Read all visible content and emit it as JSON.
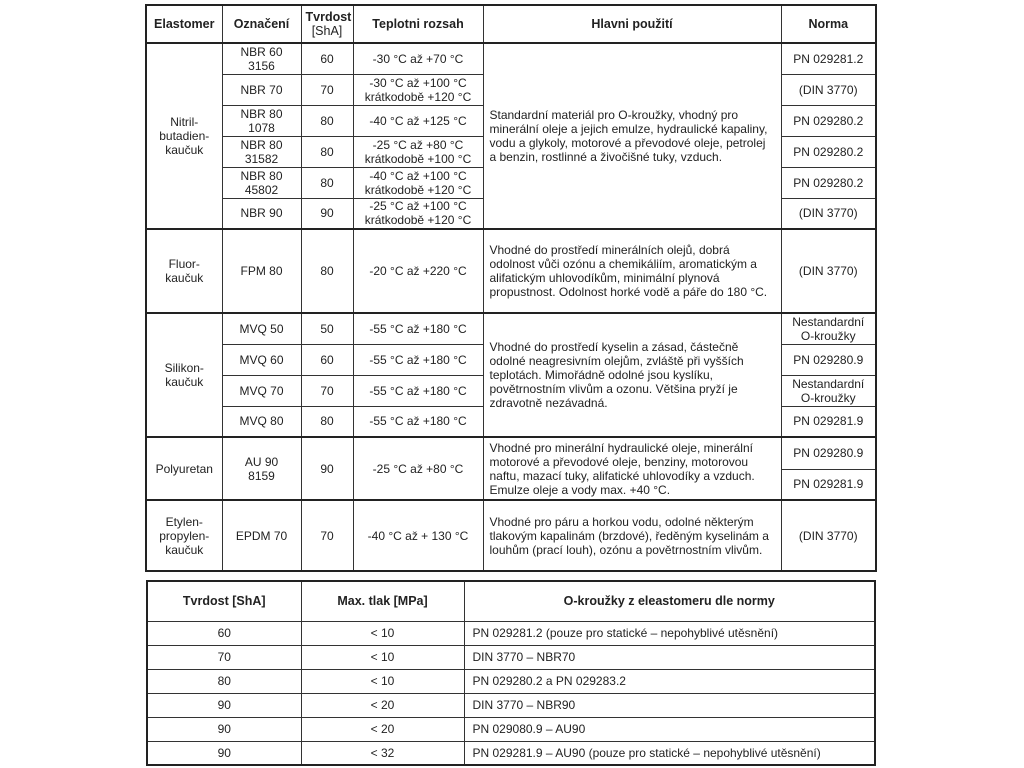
{
  "table1": {
    "headers": {
      "elastomer": "Elastomer",
      "oznaceni": "Označení",
      "tvrdost": "Tvrdost",
      "tvrdost_unit": "[ShA]",
      "teplota": "Teplotni rozsah",
      "pouziti": "Hlavni použití",
      "norma": "Norma"
    },
    "groups": [
      {
        "elastomer": "Nitril-\nbutadien-\nkaučuk",
        "pouziti": "Standardní materiál pro O-kroužky, vhodný pro minerální oleje a jejich emulze, hydraulické kapaliny, vodu a glykoly, motorové a převodové oleje, petrolej a benzin, rostlinné a živočišné tuky, vzduch.",
        "items": [
          {
            "oznaceni": "NBR 60\n3156",
            "tvrdost": "60",
            "teplota": "-30 °C až +70 °C",
            "norma": [
              "PN 029281.2"
            ]
          },
          {
            "oznaceni": "NBR 70",
            "tvrdost": "70",
            "teplota": "-30 °C až +100 °C\nkrátkodobě +120 °C",
            "norma": [
              "(DIN 3770)"
            ]
          },
          {
            "oznaceni": "NBR 80\n1078",
            "tvrdost": "80",
            "teplota": "-40 °C až +125 °C",
            "norma": [
              "PN 029280.2"
            ]
          },
          {
            "oznaceni": "NBR 80\n31582",
            "tvrdost": "80",
            "teplota": "-25 °C až +80 °C\nkrátkodobě +100 °C",
            "norma": [
              "PN 029280.2"
            ]
          },
          {
            "oznaceni": "NBR 80\n45802",
            "tvrdost": "80",
            "teplota": "-40 °C až +100 °C\nkrátkodobě +120 °C",
            "norma": [
              "PN 029280.2"
            ]
          },
          {
            "oznaceni": "NBR 90",
            "tvrdost": "90",
            "teplota": "-25 °C až +100 °C\nkrátkodobě +120 °C",
            "norma": [
              "(DIN 3770)"
            ]
          }
        ]
      },
      {
        "elastomer": "Fluor-\nkaučuk",
        "pouziti": "Vhodné do prostředí minerálních olejů, dobrá odolnost vůči ozónu a chemikáliím, aromatickým a alifatickým uhlovodíkům, minimální plynová propustnost. Odolnost horké vodě a páře do 180 °C.",
        "items": [
          {
            "oznaceni": "FPM 80",
            "tvrdost": "80",
            "teplota": "-20 °C až +220 °C",
            "norma": [
              "(DIN 3770)"
            ]
          }
        ]
      },
      {
        "elastomer": "Silikon-\nkaučuk",
        "pouziti": "Vhodné do prostředí kyselin a zásad, částečně odolné neagresivním olejům, zvláště při vyšších teplotách. Mimořádně odolné jsou kyslíku, povětrnostním vlivům a ozonu. Většina pryží je zdravotně nezávadná.",
        "items": [
          {
            "oznaceni": "MVQ 50",
            "tvrdost": "50",
            "teplota": "-55 °C až +180 °C",
            "norma": [
              "Nestandardní\nO-kroužky"
            ]
          },
          {
            "oznaceni": "MVQ 60",
            "tvrdost": "60",
            "teplota": "-55 °C až +180 °C",
            "norma": [
              "PN 029280.9"
            ]
          },
          {
            "oznaceni": "MVQ 70",
            "tvrdost": "70",
            "teplota": "-55 °C až +180 °C",
            "norma": [
              "Nestandardní\nO-kroužky"
            ]
          },
          {
            "oznaceni": "MVQ 80",
            "tvrdost": "80",
            "teplota": "-55 °C až +180 °C",
            "norma": [
              "PN 029281.9"
            ]
          }
        ]
      },
      {
        "elastomer": "Polyuretan",
        "pouziti": "Vhodné pro minerální hydraulické oleje, minerální motorové a převodové oleje, benziny, motorovou naftu, mazací tuky, alifatické uhlovodíky a vzduch. Emulze oleje a vody max. +40 °C.",
        "items": [
          {
            "oznaceni": "AU 90\n8159",
            "tvrdost": "90",
            "teplota": "-25 °C až +80 °C",
            "norma": [
              "PN 029280.9",
              "PN 029281.9"
            ]
          }
        ]
      },
      {
        "elastomer": "Etylen-\npropylen-\nkaučuk",
        "pouziti": "Vhodné pro páru a horkou vodu, odolné některým tlakovým kapalinám (brzdové), ředěným kyselinám a louhům (prací louh), ozónu a povětrnostním vlivům.",
        "items": [
          {
            "oznaceni": "EPDM 70",
            "tvrdost": "70",
            "teplota": "-40 °C až + 130 °C",
            "norma": [
              "(DIN 3770)"
            ]
          }
        ]
      }
    ]
  },
  "table2": {
    "headers": [
      "Tvrdost [ShA]",
      "Max. tlak [MPa]",
      "O-kroužky z eleastomeru dle normy"
    ],
    "rows": [
      [
        "60",
        "< 10",
        "PN 029281.2 (pouze pro statické – nepohyblivé utěsnění)"
      ],
      [
        "70",
        "< 10",
        "DIN 3770 – NBR70"
      ],
      [
        "80",
        "< 10",
        "PN 029280.2 a PN 029283.2"
      ],
      [
        "90",
        "< 20",
        "DIN 3770 – NBR90"
      ],
      [
        "90",
        "< 20",
        "PN 029080.9 – AU90"
      ],
      [
        "90",
        "< 32",
        "PN 029281.9 – AU90 (pouze pro statické – nepohyblivé utěsnění)"
      ]
    ]
  }
}
